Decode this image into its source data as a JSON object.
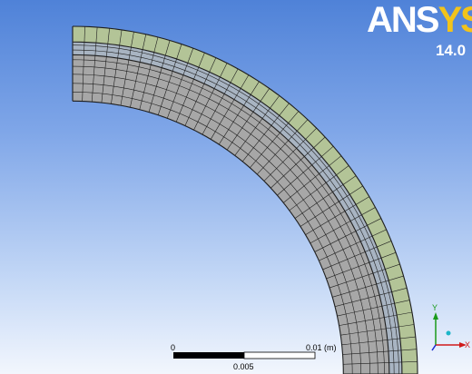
{
  "logo": {
    "brand_main": "ANS",
    "brand_tail": "YS",
    "version": "14.0"
  },
  "scale_bar": {
    "label_zero": "0",
    "label_mid": "0.005",
    "label_end": "0.01 (m)"
  },
  "triad": {
    "y_label": "Y",
    "x_label": "X"
  },
  "mesh": {
    "colors": {
      "outer_layer": "#b3c497",
      "middle_layer": "#a8b4c2",
      "inner_layer": "#a7a7a7",
      "grid_line": "#1e1e1e"
    }
  }
}
